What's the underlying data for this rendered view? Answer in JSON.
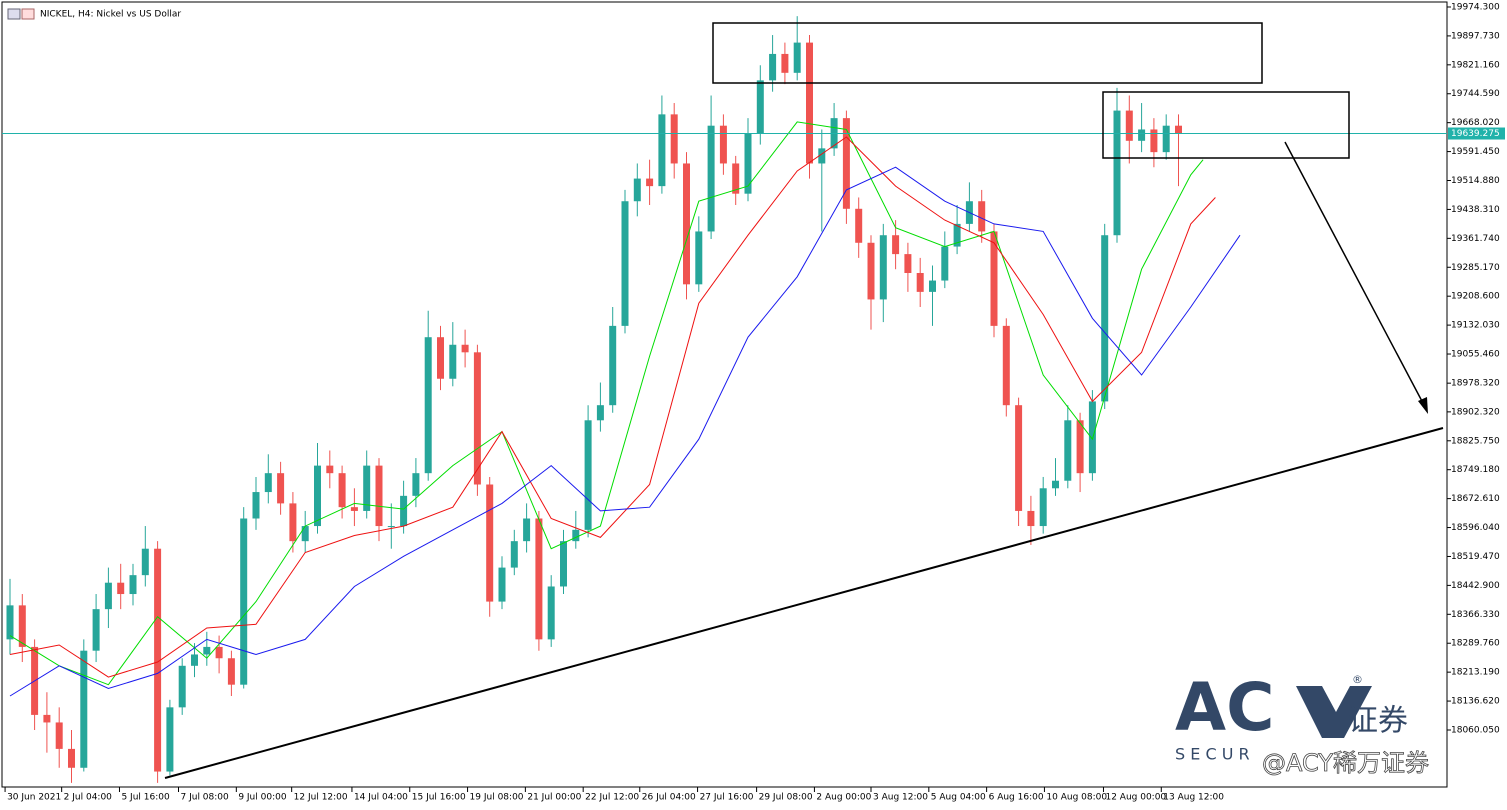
{
  "chart_data": {
    "type": "candlestick",
    "title": "NICKEL, H4:  Nickel vs US Dollar",
    "open": [
      18300,
      18390,
      18280,
      18100,
      18080,
      18010,
      17960,
      18270,
      18380,
      18450,
      18420,
      18470,
      18540,
      17950,
      18120,
      18230,
      18260,
      18280,
      18250,
      18180,
      18620,
      18690,
      18740,
      18660,
      18560,
      18600,
      18760,
      18740,
      18650,
      18640,
      18760,
      18600,
      18600,
      18680,
      18740,
      19100,
      18990,
      19080,
      19060,
      18710,
      18400,
      18490,
      18560,
      18620,
      18300,
      18440,
      18560,
      18590,
      18880,
      18920,
      19130,
      19460,
      19520,
      19500,
      19690,
      19560,
      19240,
      19380,
      19660,
      19560,
      19480,
      19640,
      19780,
      19850,
      19800,
      19880,
      19560,
      19600,
      19680,
      19440,
      19350,
      19200,
      19370,
      19320,
      19270,
      19220,
      19250,
      19340,
      19400,
      19460,
      19380,
      19130,
      18920,
      18640,
      18600,
      18700,
      18720,
      18880,
      18740,
      18930,
      19370,
      19700,
      19620,
      19650,
      19590,
      19660
    ],
    "high": [
      18460,
      18420,
      18300,
      18160,
      18120,
      18060,
      18300,
      18420,
      18490,
      18500,
      18500,
      18600,
      18560,
      18140,
      18250,
      18290,
      18320,
      18310,
      18270,
      18650,
      18730,
      18790,
      18770,
      18690,
      18640,
      18820,
      18800,
      18760,
      18700,
      18800,
      18780,
      18660,
      18720,
      18780,
      19170,
      19130,
      19140,
      19120,
      19080,
      18730,
      18520,
      18590,
      18660,
      18640,
      18470,
      18590,
      18640,
      18920,
      18980,
      19180,
      19490,
      19560,
      19570,
      19740,
      19720,
      19590,
      19420,
      19740,
      19690,
      19580,
      19680,
      19820,
      19900,
      19880,
      19950,
      19900,
      19650,
      19720,
      19700,
      19470,
      19370,
      19400,
      19410,
      19350,
      19310,
      19290,
      19380,
      19450,
      19510,
      19490,
      19400,
      19150,
      18940,
      18680,
      18730,
      18780,
      18920,
      18900,
      18960,
      19400,
      19760,
      19740,
      19720,
      19680,
      19690,
      19690
    ],
    "low": [
      18260,
      18240,
      18060,
      18000,
      17960,
      17920,
      17950,
      18240,
      18330,
      18380,
      18390,
      18440,
      17920,
      17940,
      18100,
      18200,
      18230,
      18210,
      18150,
      18170,
      18590,
      18660,
      18630,
      18530,
      18530,
      18580,
      18700,
      18620,
      18600,
      18620,
      18560,
      18540,
      18580,
      18650,
      18720,
      18960,
      18970,
      19020,
      18680,
      18360,
      18380,
      18470,
      18530,
      18270,
      18280,
      18420,
      18540,
      18570,
      18850,
      18900,
      19110,
      19420,
      19450,
      19480,
      19520,
      19200,
      19220,
      19360,
      19530,
      19450,
      19460,
      19610,
      19750,
      19770,
      19780,
      19520,
      19380,
      19580,
      19400,
      19310,
      19120,
      19140,
      19280,
      19220,
      19180,
      19130,
      19230,
      19320,
      19380,
      19350,
      19100,
      18890,
      18600,
      18550,
      18580,
      18680,
      18700,
      18690,
      18720,
      18910,
      19350,
      19560,
      19590,
      19550,
      19570,
      19500
    ],
    "close": [
      18390,
      18280,
      18100,
      18080,
      18010,
      17960,
      18270,
      18380,
      18450,
      18420,
      18470,
      18540,
      17950,
      18120,
      18230,
      18260,
      18280,
      18250,
      18180,
      18620,
      18690,
      18740,
      18660,
      18560,
      18600,
      18760,
      18740,
      18650,
      18640,
      18760,
      18600,
      18600,
      18680,
      18740,
      19100,
      18990,
      19080,
      19060,
      18710,
      18400,
      18490,
      18560,
      18620,
      18300,
      18440,
      18560,
      18590,
      18880,
      18920,
      19130,
      19460,
      19520,
      19500,
      19690,
      19560,
      19240,
      19380,
      19660,
      19560,
      19480,
      19640,
      19780,
      19850,
      19800,
      19880,
      19560,
      19600,
      19680,
      19440,
      19350,
      19200,
      19370,
      19320,
      19270,
      19220,
      19250,
      19340,
      19400,
      19460,
      19380,
      19130,
      18920,
      18640,
      18600,
      18700,
      18720,
      18880,
      18740,
      18930,
      19370,
      19700,
      19620,
      19650,
      19590,
      19660,
      19640
    ],
    "up_color": "#26a69a",
    "down_color": "#ef5350",
    "series": [
      {
        "color": "#00dd00",
        "x": [
          0,
          4,
          8,
          12,
          16,
          20,
          24,
          28,
          32,
          36,
          40,
          44,
          48,
          52,
          56,
          60,
          64,
          68,
          72,
          76,
          80,
          84,
          88,
          92,
          96,
          97
        ],
        "values": [
          18310,
          18230,
          18180,
          18360,
          18250,
          18400,
          18600,
          18660,
          18645,
          18760,
          18850,
          18540,
          18600,
          19050,
          19460,
          19500,
          19670,
          19650,
          19390,
          19340,
          19380,
          19000,
          18830,
          19280,
          19530,
          19570
        ]
      },
      {
        "color": "#ee1111",
        "x": [
          0,
          4,
          8,
          12,
          16,
          20,
          24,
          28,
          32,
          36,
          40,
          44,
          48,
          52,
          56,
          60,
          64,
          68,
          72,
          76,
          80,
          84,
          88,
          92,
          96,
          98
        ],
        "values": [
          18260,
          18285,
          18200,
          18240,
          18330,
          18340,
          18530,
          18575,
          18600,
          18650,
          18850,
          18620,
          18570,
          18710,
          19190,
          19370,
          19540,
          19630,
          19500,
          19410,
          19350,
          19160,
          18930,
          19060,
          19400,
          19470
        ]
      },
      {
        "color": "#1a1aee",
        "x": [
          0,
          4,
          8,
          12,
          16,
          20,
          24,
          28,
          32,
          36,
          40,
          44,
          48,
          52,
          56,
          60,
          64,
          68,
          72,
          76,
          80,
          84,
          88,
          92,
          96,
          100
        ],
        "values": [
          18150,
          18230,
          18170,
          18210,
          18300,
          18260,
          18300,
          18440,
          18520,
          18590,
          18660,
          18760,
          18640,
          18650,
          18830,
          19100,
          19260,
          19490,
          19550,
          19460,
          19400,
          19380,
          19150,
          19000,
          19180,
          19370
        ]
      }
    ],
    "price_line": 19639.275,
    "price_line_color": "#20b2aa",
    "ylim": [
      17909.1,
      19987.5
    ],
    "yticks": [
      {
        "value": 19974.3,
        "label": "19974.300"
      },
      {
        "value": 19897.73,
        "label": "19897.730"
      },
      {
        "value": 19821.16,
        "label": "19821.160"
      },
      {
        "value": 19744.59,
        "label": "19744.590"
      },
      {
        "value": 19668.02,
        "label": "19668.020"
      },
      {
        "value": 19591.45,
        "label": "19591.450"
      },
      {
        "value": 19514.88,
        "label": "19514.880"
      },
      {
        "value": 19438.31,
        "label": "19438.310"
      },
      {
        "value": 19361.74,
        "label": "19361.740"
      },
      {
        "value": 19285.17,
        "label": "19285.170"
      },
      {
        "value": 19208.6,
        "label": "19208.600"
      },
      {
        "value": 19132.03,
        "label": "19132.030"
      },
      {
        "value": 19055.46,
        "label": "19055.460"
      },
      {
        "value": 18978.32,
        "label": "18978.320"
      },
      {
        "value": 18902.32,
        "label": "18902.320"
      },
      {
        "value": 18825.75,
        "label": "18825.750"
      },
      {
        "value": 18749.18,
        "label": "18749.180"
      },
      {
        "value": 18672.61,
        "label": "18672.610"
      },
      {
        "value": 18596.04,
        "label": "18596.040"
      },
      {
        "value": 18519.47,
        "label": "18519.470"
      },
      {
        "value": 18442.9,
        "label": "18442.900"
      },
      {
        "value": 18366.33,
        "label": "18366.330"
      },
      {
        "value": 18289.76,
        "label": "18289.760"
      },
      {
        "value": 18213.19,
        "label": "18213.190"
      },
      {
        "value": 18136.62,
        "label": "18136.620"
      },
      {
        "value": 18060.05,
        "label": "18060.050"
      }
    ],
    "xticks": [
      {
        "value": -0.4,
        "label": "30 Jun 2021"
      },
      {
        "value": 4.2,
        "label": "2 Jul 04:00"
      },
      {
        "value": 8.9,
        "label": "5 Jul 16:00"
      },
      {
        "value": 13.7,
        "label": "7 Jul 08:00"
      },
      {
        "value": 18.4,
        "label": "9 Jul 00:00"
      },
      {
        "value": 22.9,
        "label": "12 Jul 12:00"
      },
      {
        "value": 27.8,
        "label": "14 Jul 04:00"
      },
      {
        "value": 32.5,
        "label": "15 Jul 16:00"
      },
      {
        "value": 37.2,
        "label": "19 Jul 08:00"
      },
      {
        "value": 41.9,
        "label": "21 Jul 00:00"
      },
      {
        "value": 46.6,
        "label": "22 Jul 12:00"
      },
      {
        "value": 51.2,
        "label": "26 Jul 04:00"
      },
      {
        "value": 55.9,
        "label": "27 Jul 16:00"
      },
      {
        "value": 60.7,
        "label": "29 Jul 08:00"
      },
      {
        "value": 65.4,
        "label": "2 Aug 00:00"
      },
      {
        "value": 70,
        "label": "3 Aug 12:00"
      },
      {
        "value": 74.7,
        "label": "5 Aug 04:00"
      },
      {
        "value": 79.4,
        "label": "6 Aug 16:00"
      },
      {
        "value": 84.1,
        "label": "10 Aug 08:00"
      },
      {
        "value": 88.9,
        "label": "12 Aug 00:00"
      },
      {
        "value": 93.6,
        "label": "13 Aug 12:00"
      }
    ],
    "watermark": {
      "brand": "AC",
      "cn": "证券",
      "reg": "®",
      "sub": "S E C U R",
      "handle": "@ACY稀万证券"
    }
  }
}
